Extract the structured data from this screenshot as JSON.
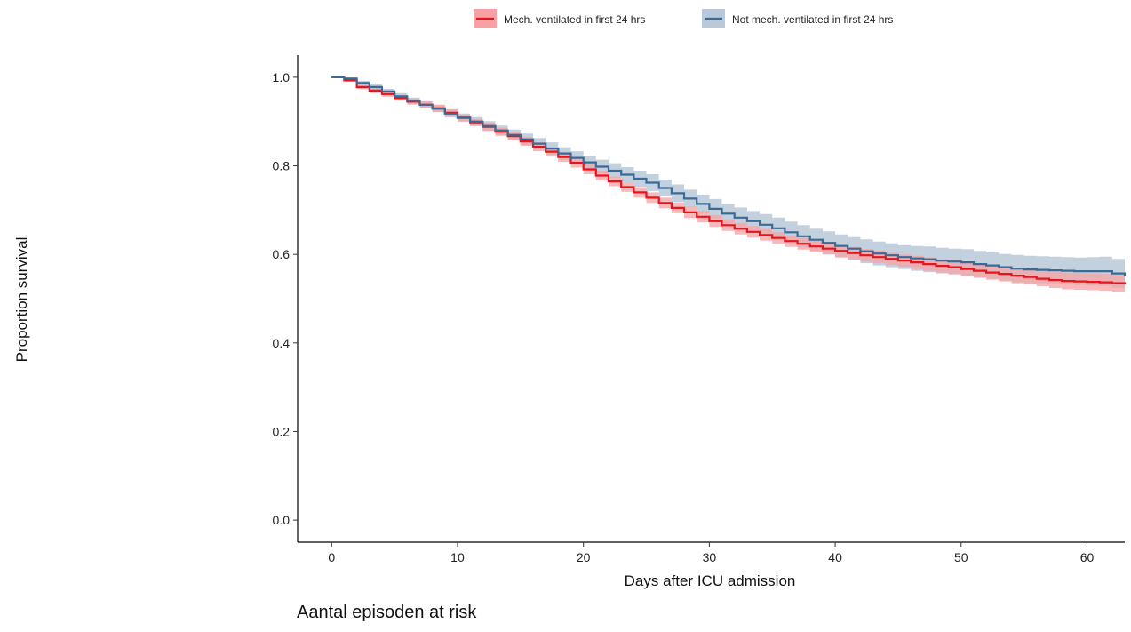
{
  "chart_data": {
    "type": "line",
    "subtype": "kaplan-meier survival curves with confidence bands",
    "title": "",
    "xlabel": "Days after ICU admission",
    "ylabel": "Proportion survival",
    "xlim": [
      -2.7,
      63
    ],
    "ylim": [
      -0.05,
      1.05
    ],
    "x_ticks": [
      0,
      10,
      20,
      30,
      40,
      50,
      60
    ],
    "y_ticks": [
      0.0,
      0.2,
      0.4,
      0.6,
      0.8,
      1.0
    ],
    "y_tick_labels": [
      "0.0",
      "0.2",
      "0.4",
      "0.6",
      "0.8",
      "1.0"
    ],
    "grid": false,
    "legend_position": "top",
    "x": [
      0,
      1,
      2,
      3,
      4,
      5,
      6,
      7,
      8,
      9,
      10,
      11,
      12,
      13,
      14,
      15,
      16,
      17,
      18,
      19,
      20,
      21,
      22,
      23,
      24,
      25,
      26,
      27,
      28,
      29,
      30,
      31,
      32,
      33,
      34,
      35,
      36,
      37,
      38,
      39,
      40,
      41,
      42,
      43,
      44,
      45,
      46,
      47,
      48,
      49,
      50,
      51,
      52,
      53,
      54,
      55,
      56,
      57,
      58,
      59,
      60,
      61,
      62,
      63
    ],
    "series": [
      {
        "name": "Mech. ventilated in first 24 hrs",
        "color": "#e8131b",
        "band_color": "#f7a1a4",
        "values": [
          1.0,
          0.993,
          0.978,
          0.97,
          0.962,
          0.953,
          0.945,
          0.938,
          0.93,
          0.92,
          0.908,
          0.898,
          0.888,
          0.877,
          0.867,
          0.855,
          0.843,
          0.832,
          0.82,
          0.807,
          0.792,
          0.778,
          0.765,
          0.752,
          0.74,
          0.728,
          0.716,
          0.705,
          0.695,
          0.685,
          0.675,
          0.666,
          0.658,
          0.651,
          0.644,
          0.637,
          0.63,
          0.624,
          0.618,
          0.613,
          0.608,
          0.603,
          0.598,
          0.594,
          0.59,
          0.586,
          0.582,
          0.578,
          0.574,
          0.571,
          0.567,
          0.563,
          0.559,
          0.556,
          0.552,
          0.549,
          0.545,
          0.542,
          0.54,
          0.539,
          0.538,
          0.537,
          0.535,
          0.532
        ],
        "lower": [
          1.0,
          0.99,
          0.973,
          0.964,
          0.956,
          0.947,
          0.938,
          0.931,
          0.922,
          0.912,
          0.9,
          0.89,
          0.879,
          0.868,
          0.857,
          0.845,
          0.833,
          0.821,
          0.809,
          0.796,
          0.781,
          0.767,
          0.754,
          0.741,
          0.728,
          0.716,
          0.704,
          0.693,
          0.682,
          0.672,
          0.662,
          0.653,
          0.645,
          0.638,
          0.631,
          0.624,
          0.617,
          0.611,
          0.605,
          0.6,
          0.594,
          0.589,
          0.584,
          0.58,
          0.576,
          0.572,
          0.567,
          0.563,
          0.559,
          0.555,
          0.551,
          0.547,
          0.543,
          0.539,
          0.535,
          0.532,
          0.528,
          0.524,
          0.521,
          0.52,
          0.519,
          0.518,
          0.516,
          0.513
        ],
        "upper": [
          1.0,
          0.996,
          0.983,
          0.976,
          0.968,
          0.959,
          0.952,
          0.945,
          0.938,
          0.928,
          0.916,
          0.906,
          0.897,
          0.886,
          0.877,
          0.865,
          0.853,
          0.843,
          0.831,
          0.818,
          0.803,
          0.789,
          0.776,
          0.763,
          0.752,
          0.74,
          0.728,
          0.717,
          0.708,
          0.698,
          0.688,
          0.679,
          0.671,
          0.664,
          0.657,
          0.65,
          0.643,
          0.637,
          0.631,
          0.626,
          0.622,
          0.617,
          0.612,
          0.608,
          0.604,
          0.6,
          0.597,
          0.593,
          0.589,
          0.587,
          0.583,
          0.579,
          0.575,
          0.573,
          0.569,
          0.566,
          0.562,
          0.56,
          0.559,
          0.558,
          0.557,
          0.556,
          0.554,
          0.551
        ]
      },
      {
        "name": "Not mech. ventilated in first 24 hrs",
        "color": "#3a6a96",
        "band_color": "#b9c9d9",
        "values": [
          1.0,
          0.997,
          0.987,
          0.978,
          0.968,
          0.957,
          0.947,
          0.938,
          0.929,
          0.918,
          0.909,
          0.9,
          0.89,
          0.88,
          0.87,
          0.86,
          0.85,
          0.839,
          0.828,
          0.818,
          0.808,
          0.798,
          0.789,
          0.78,
          0.771,
          0.762,
          0.75,
          0.738,
          0.726,
          0.714,
          0.703,
          0.692,
          0.683,
          0.675,
          0.667,
          0.659,
          0.65,
          0.641,
          0.633,
          0.626,
          0.619,
          0.613,
          0.607,
          0.602,
          0.598,
          0.594,
          0.591,
          0.589,
          0.586,
          0.584,
          0.582,
          0.578,
          0.575,
          0.571,
          0.568,
          0.566,
          0.565,
          0.564,
          0.563,
          0.562,
          0.562,
          0.562,
          0.557,
          0.551
        ]
      }
    ],
    "bands": [
      {
        "series": "Not mech. ventilated in first 24 hrs",
        "lower": [
          1.0,
          0.994,
          0.982,
          0.972,
          0.962,
          0.95,
          0.94,
          0.93,
          0.921,
          0.909,
          0.9,
          0.89,
          0.879,
          0.869,
          0.858,
          0.847,
          0.837,
          0.825,
          0.814,
          0.803,
          0.793,
          0.782,
          0.772,
          0.763,
          0.753,
          0.743,
          0.731,
          0.718,
          0.706,
          0.693,
          0.681,
          0.67,
          0.66,
          0.652,
          0.643,
          0.635,
          0.626,
          0.616,
          0.608,
          0.6,
          0.593,
          0.587,
          0.58,
          0.575,
          0.571,
          0.567,
          0.563,
          0.56,
          0.557,
          0.555,
          0.552,
          0.548,
          0.545,
          0.541,
          0.537,
          0.535,
          0.534,
          0.533,
          0.532,
          0.531,
          0.53,
          0.529,
          0.524,
          0.517
        ],
        "upper": [
          1.0,
          1.0,
          0.992,
          0.984,
          0.974,
          0.964,
          0.954,
          0.946,
          0.937,
          0.927,
          0.918,
          0.91,
          0.901,
          0.891,
          0.882,
          0.873,
          0.863,
          0.853,
          0.842,
          0.833,
          0.823,
          0.814,
          0.806,
          0.797,
          0.789,
          0.781,
          0.769,
          0.758,
          0.746,
          0.735,
          0.725,
          0.714,
          0.706,
          0.698,
          0.691,
          0.683,
          0.674,
          0.666,
          0.658,
          0.652,
          0.645,
          0.639,
          0.634,
          0.629,
          0.625,
          0.621,
          0.619,
          0.618,
          0.615,
          0.613,
          0.612,
          0.608,
          0.605,
          0.601,
          0.599,
          0.597,
          0.596,
          0.595,
          0.594,
          0.593,
          0.594,
          0.595,
          0.59,
          0.585
        ]
      }
    ]
  },
  "risk_table": {
    "title": "Aantal episoden at risk"
  }
}
